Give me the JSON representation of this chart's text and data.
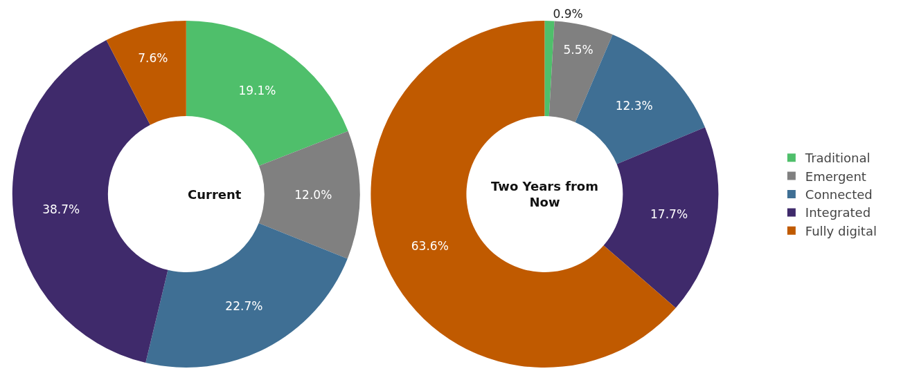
{
  "chart_data": {
    "type": "donut",
    "categories": [
      "Traditional",
      "Emergent",
      "Connected",
      "Integrated",
      "Fully digital"
    ],
    "colors": [
      "#4fbf6b",
      "#808080",
      "#3f6f94",
      "#3f2a6b",
      "#c05a00"
    ],
    "legend": "right",
    "series": [
      {
        "name": "Current",
        "values": [
          19.1,
          12.0,
          22.7,
          38.7,
          7.6
        ],
        "value_labels": [
          "19.1%",
          "12.0%",
          "22.7%",
          "38.7%",
          "7.6%"
        ]
      },
      {
        "name": "Two Years from Now",
        "values": [
          0.9,
          5.5,
          12.3,
          17.7,
          63.6
        ],
        "value_labels": [
          "0.9%",
          "5.5%",
          "12.3%",
          "17.7%",
          "63.6%"
        ]
      }
    ]
  }
}
